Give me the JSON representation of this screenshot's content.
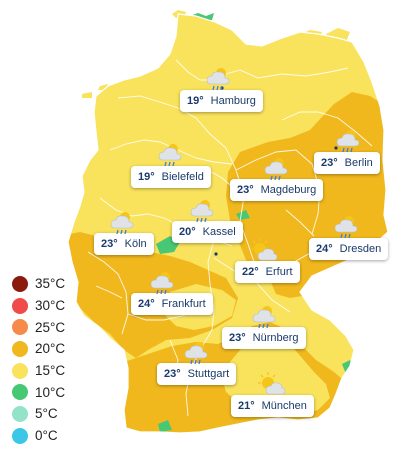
{
  "colors": {
    "band_15": "#f9e25c",
    "band_20": "#f0b81d",
    "band_10": "#48c774",
    "border": "#ffffff",
    "label_text": "#1a3a6b"
  },
  "cities": [
    {
      "id": "hamburg",
      "temp": "19°",
      "name": "Hamburg",
      "icon": "cloud-sun-rain-icon"
    },
    {
      "id": "berlin",
      "temp": "23°",
      "name": "Berlin",
      "icon": "cloud-sun-rain-icon"
    },
    {
      "id": "bielefeld",
      "temp": "19°",
      "name": "Bielefeld",
      "icon": "cloud-sun-rain-icon"
    },
    {
      "id": "magdeburg",
      "temp": "23°",
      "name": "Magdeburg",
      "icon": "cloud-sun-rain-icon"
    },
    {
      "id": "kassel",
      "temp": "20°",
      "name": "Kassel",
      "icon": "cloud-sun-rain-icon"
    },
    {
      "id": "koeln",
      "temp": "23°",
      "name": "Köln",
      "icon": "cloud-sun-rain-icon"
    },
    {
      "id": "dresden",
      "temp": "24°",
      "name": "Dresden",
      "icon": "cloud-sun-rain-icon"
    },
    {
      "id": "erfurt",
      "temp": "22°",
      "name": "Erfurt",
      "icon": "sun-cloud-icon"
    },
    {
      "id": "frankfurt",
      "temp": "24°",
      "name": "Frankfurt",
      "icon": "cloud-sun-rain-icon"
    },
    {
      "id": "nuernberg",
      "temp": "23°",
      "name": "Nürnberg",
      "icon": "cloud-sun-rain-icon"
    },
    {
      "id": "stuttgart",
      "temp": "23°",
      "name": "Stuttgart",
      "icon": "cloud-sun-rain-icon"
    },
    {
      "id": "muenchen",
      "temp": "21°",
      "name": "München",
      "icon": "sun-cloud-icon"
    }
  ],
  "legend": [
    {
      "label": "35°C",
      "color": "#8b1a0e"
    },
    {
      "label": "30°C",
      "color": "#f04a4a"
    },
    {
      "label": "25°C",
      "color": "#f58a4a"
    },
    {
      "label": "20°C",
      "color": "#f0b81d"
    },
    {
      "label": "15°C",
      "color": "#f9e25c"
    },
    {
      "label": "10°C",
      "color": "#48c774"
    },
    {
      "label": "5°C",
      "color": "#93e3c9"
    },
    {
      "label": "0°C",
      "color": "#3cc7e6"
    }
  ]
}
